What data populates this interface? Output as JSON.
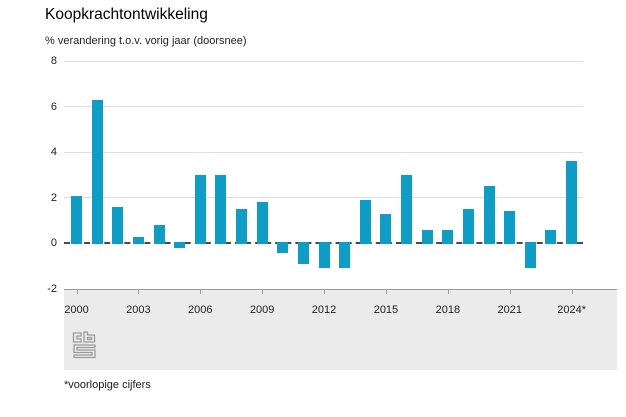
{
  "header": {
    "title": "Koopkrachtontwikkeling",
    "subtitle": "% verandering t.o.v. vorig jaar (doorsnee)"
  },
  "footnote": "*voorlopige cijfers",
  "logo": "cbs-logo",
  "colors": {
    "bar": "#0f9cc5",
    "gridline": "#dedede",
    "zero_line": "#4a4a4a",
    "axis_band": "#ebebeb",
    "axis_border": "#9b9b9b",
    "text": "#1a1a1a"
  },
  "chart_data": {
    "type": "bar",
    "title": "Koopkrachtontwikkeling",
    "subtitle": "% verandering t.o.v. vorig jaar (doorsnee)",
    "ylabel": "% verandering t.o.v. vorig jaar",
    "xlabel": "",
    "categories": [
      "2000",
      "2001",
      "2002",
      "2003",
      "2004",
      "2005",
      "2006",
      "2007",
      "2008",
      "2009",
      "2010",
      "2011",
      "2012",
      "2013",
      "2014",
      "2015",
      "2016",
      "2017",
      "2018",
      "2019",
      "2020",
      "2021",
      "2022",
      "2023",
      "2024*"
    ],
    "values": [
      2.1,
      6.3,
      1.6,
      0.3,
      0.8,
      -0.2,
      3.0,
      3.0,
      1.5,
      1.8,
      -0.4,
      -0.9,
      -1.1,
      -1.1,
      1.9,
      1.3,
      3.0,
      0.6,
      0.6,
      1.5,
      2.5,
      1.4,
      -1.1,
      0.6,
      3.6
    ],
    "ylim": [
      -2,
      8
    ],
    "yticks": [
      8,
      6,
      4,
      2,
      0,
      -2
    ],
    "xtick_labels": [
      "2000",
      "2003",
      "2006",
      "2009",
      "2012",
      "2015",
      "2018",
      "2021",
      "2024*"
    ],
    "grid": "horizontal-light",
    "zero_line": "dashed-dark",
    "legend": "none",
    "bar_color": "#0f9cc5",
    "footnote": "*voorlopige cijfers"
  }
}
